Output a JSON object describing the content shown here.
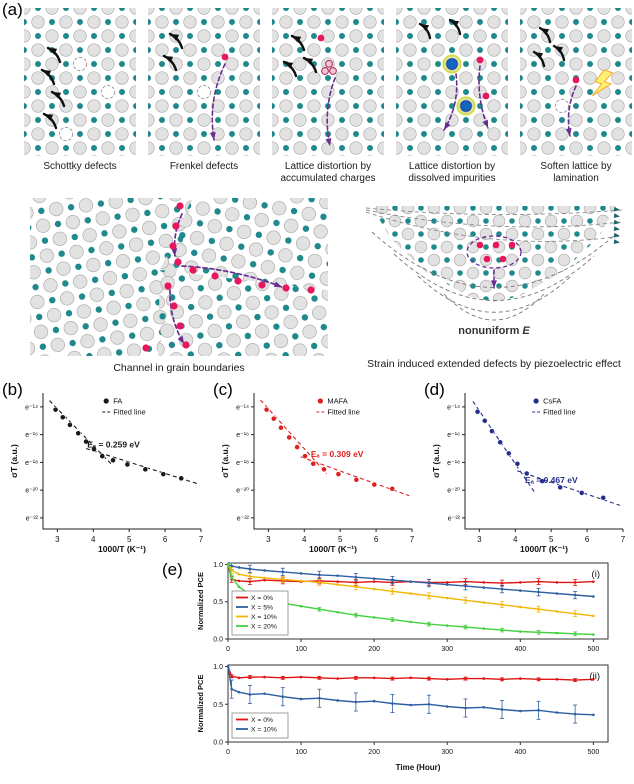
{
  "figure": {
    "panel_labels": {
      "a": "(a)",
      "b": "(b)",
      "c": "(c)",
      "d": "(d)",
      "e": "(e)"
    },
    "colors": {
      "atom_grey": "#e2e2e2",
      "atom_grey_edge": "#aeaeae",
      "atom_teal": "#20898d",
      "ion_pink": "#e8175d",
      "arrow_black": "#101010",
      "arrow_purple": "#6a2d91",
      "impurity_blue": "#1565c0",
      "impurity_halo": "#cddc39",
      "lightning_fill": "#fff176",
      "lightning_edge": "#f9a825",
      "vacancy_edge": "#9e9e9e"
    },
    "lattice_panels": [
      {
        "caption": "Schottky defects"
      },
      {
        "caption": "Frenkel defects"
      },
      {
        "caption": "Lattice distortion by accumulated charges"
      },
      {
        "caption": "Lattice distortion by dissolved impurities"
      },
      {
        "caption": "Soften lattice by lamination"
      }
    ],
    "grain_boundary_caption": "Channel in grain boundaries",
    "piezo_caption": "Strain induced extended defects by piezoelectric effect",
    "nonuniform_label": "nonuniform",
    "nonuniform_symbol": "E"
  },
  "chart_data": [
    {
      "id": "arrhenius-FA",
      "panel_label": "(b)",
      "type": "scatter",
      "series_name": "FA",
      "fit_label": "Fitted line",
      "color": "#1a1a1a",
      "annotation": "Eₐ = 0.259 eV",
      "xlabel": "1000/T (K⁻¹)",
      "ylabel": "σT (a.u.)",
      "xlim": [
        2.6,
        7.0
      ],
      "ylim": [
        -22.8,
        -13.0
      ],
      "xticks": [
        3,
        4,
        5,
        6,
        7
      ],
      "ytick_values": [
        -14,
        -16,
        -18,
        -20,
        -22
      ],
      "ytick_labels": [
        "e⁻¹⁴",
        "e⁻¹⁶",
        "e⁻¹⁸",
        "e⁻²⁰",
        "e⁻²²"
      ],
      "points_x": [
        2.95,
        3.15,
        3.35,
        3.58,
        3.8,
        4.02,
        4.25,
        4.55,
        4.95,
        5.45,
        5.95,
        6.45
      ],
      "points_y": [
        -14.2,
        -14.75,
        -15.3,
        -15.9,
        -16.5,
        -17.05,
        -17.55,
        -17.85,
        -18.15,
        -18.5,
        -18.85,
        -19.15
      ],
      "fits": [
        [
          2.78,
          -13.55,
          4.55,
          -18.25
        ],
        [
          3.8,
          -17.0,
          6.92,
          -19.55
        ]
      ],
      "legend_fx": 0.4,
      "ann_fx": 0.28,
      "ann_fy": 0.4
    },
    {
      "id": "arrhenius-MAFA",
      "panel_label": "(c)",
      "type": "scatter",
      "series_name": "MAFA",
      "fit_label": "Fitted line",
      "color": "#e02020",
      "annotation": "Eₐ = 0.309 eV",
      "xlabel": "1000/T (K⁻¹)",
      "ylabel": "σT (a.u.)",
      "xlim": [
        2.6,
        7.0
      ],
      "ylim": [
        -22.8,
        -13.0
      ],
      "xticks": [
        3,
        4,
        5,
        6,
        7
      ],
      "ytick_values": [
        -14,
        -16,
        -18,
        -20,
        -22
      ],
      "ytick_labels": [
        "e⁻¹⁴",
        "e⁻¹⁶",
        "e⁻¹⁸",
        "e⁻²⁰",
        "e⁻²²"
      ],
      "points_x": [
        2.95,
        3.15,
        3.35,
        3.58,
        3.8,
        4.02,
        4.25,
        4.55,
        4.95,
        5.45,
        5.95,
        6.45
      ],
      "points_y": [
        -14.2,
        -14.85,
        -15.5,
        -16.2,
        -16.9,
        -17.55,
        -18.1,
        -18.5,
        -18.85,
        -19.25,
        -19.6,
        -19.9
      ],
      "fits": [
        [
          2.78,
          -13.5,
          4.62,
          -18.8
        ],
        [
          3.9,
          -17.6,
          6.92,
          -20.4
        ]
      ],
      "legend_fx": 0.42,
      "ann_fx": 0.36,
      "ann_fy": 0.47
    },
    {
      "id": "arrhenius-CsFA",
      "panel_label": "(d)",
      "type": "scatter",
      "series_name": "CsFA",
      "fit_label": "Fitted line",
      "color": "#26308c",
      "annotation": "Eₐ = 0.467 eV",
      "xlabel": "1000/T (K⁻¹)",
      "ylabel": "σT (a.u.)",
      "xlim": [
        2.6,
        7.0
      ],
      "ylim": [
        -22.8,
        -13.0
      ],
      "xticks": [
        3,
        4,
        5,
        6,
        7
      ],
      "ytick_values": [
        -14,
        -16,
        -18,
        -20,
        -22
      ],
      "ytick_labels": [
        "e⁻¹⁴",
        "e⁻¹⁶",
        "e⁻¹⁸",
        "e⁻²⁰",
        "e⁻²²"
      ],
      "points_x": [
        2.95,
        3.15,
        3.35,
        3.58,
        3.82,
        4.06,
        4.32,
        4.75,
        5.25,
        5.85,
        6.45
      ],
      "points_y": [
        -14.35,
        -15.0,
        -15.75,
        -16.55,
        -17.35,
        -18.1,
        -18.8,
        -19.35,
        -19.8,
        -20.2,
        -20.55
      ],
      "fits": [
        [
          2.82,
          -13.6,
          4.55,
          -20.2
        ],
        [
          4.05,
          -18.6,
          6.92,
          -21.1
        ]
      ],
      "legend_fx": 0.45,
      "ann_fx": 0.38,
      "ann_fy": 0.66
    },
    {
      "id": "pce-stability-i",
      "panel_label": "(i)",
      "type": "line",
      "xlabel": "",
      "ylabel": "Normalized PCE",
      "xlim": [
        0,
        520
      ],
      "ylim": [
        0,
        1.02
      ],
      "xticks": [
        0,
        100,
        200,
        300,
        400,
        500
      ],
      "yticks": [
        0,
        0.5,
        1
      ],
      "x": [
        0,
        5,
        15,
        30,
        50,
        75,
        100,
        125,
        150,
        175,
        200,
        225,
        250,
        275,
        300,
        325,
        350,
        375,
        400,
        425,
        450,
        475,
        500
      ],
      "series": [
        {
          "name": "X = 0%",
          "color": "#e01212",
          "err": 0.04,
          "y": [
            1.0,
            0.8,
            0.78,
            0.77,
            0.79,
            0.78,
            0.77,
            0.78,
            0.77,
            0.76,
            0.77,
            0.76,
            0.77,
            0.76,
            0.76,
            0.77,
            0.76,
            0.75,
            0.76,
            0.77,
            0.76,
            0.76,
            0.77
          ]
        },
        {
          "name": "X = 5%",
          "color": "#2e5fa3",
          "err": 0.05,
          "y": [
            1.0,
            0.98,
            0.96,
            0.94,
            0.92,
            0.9,
            0.88,
            0.86,
            0.85,
            0.83,
            0.81,
            0.79,
            0.77,
            0.75,
            0.73,
            0.71,
            0.69,
            0.67,
            0.65,
            0.63,
            0.61,
            0.59,
            0.57
          ]
        },
        {
          "name": "X = 10%",
          "color": "#f2b705",
          "err": 0.04,
          "y": [
            1.0,
            0.92,
            0.87,
            0.84,
            0.82,
            0.8,
            0.78,
            0.76,
            0.73,
            0.7,
            0.67,
            0.64,
            0.61,
            0.58,
            0.55,
            0.52,
            0.49,
            0.46,
            0.43,
            0.4,
            0.37,
            0.34,
            0.31
          ]
        },
        {
          "name": "X = 20%",
          "color": "#43d13e",
          "err": 0.025,
          "y": [
            1.0,
            0.83,
            0.7,
            0.6,
            0.53,
            0.48,
            0.44,
            0.4,
            0.36,
            0.32,
            0.29,
            0.26,
            0.23,
            0.2,
            0.18,
            0.16,
            0.14,
            0.12,
            0.1,
            0.09,
            0.08,
            0.07,
            0.06
          ]
        }
      ]
    },
    {
      "id": "pce-stability-ii",
      "panel_label": "(ii)",
      "type": "line",
      "xlabel": "Time (Hour)",
      "ylabel": "Normalized PCE",
      "xlim": [
        0,
        520
      ],
      "ylim": [
        0,
        1.02
      ],
      "xticks": [
        0,
        100,
        200,
        300,
        400,
        500
      ],
      "yticks": [
        0,
        0.5,
        1
      ],
      "x": [
        0,
        5,
        15,
        30,
        50,
        75,
        100,
        125,
        150,
        175,
        200,
        225,
        250,
        275,
        300,
        325,
        350,
        375,
        400,
        425,
        450,
        475,
        500
      ],
      "series": [
        {
          "name": "X = 0%",
          "color": "#e01212",
          "err": 0.02,
          "y": [
            1.0,
            0.87,
            0.85,
            0.86,
            0.86,
            0.85,
            0.86,
            0.85,
            0.84,
            0.85,
            0.85,
            0.84,
            0.85,
            0.84,
            0.83,
            0.84,
            0.84,
            0.83,
            0.84,
            0.83,
            0.83,
            0.82,
            0.83
          ]
        },
        {
          "name": "X = 10%",
          "color": "#2e5fa3",
          "err": 0.12,
          "y": [
            1.0,
            0.7,
            0.66,
            0.63,
            0.64,
            0.6,
            0.57,
            0.58,
            0.55,
            0.53,
            0.54,
            0.51,
            0.49,
            0.5,
            0.47,
            0.45,
            0.46,
            0.43,
            0.41,
            0.42,
            0.39,
            0.37,
            0.36
          ]
        }
      ]
    }
  ]
}
